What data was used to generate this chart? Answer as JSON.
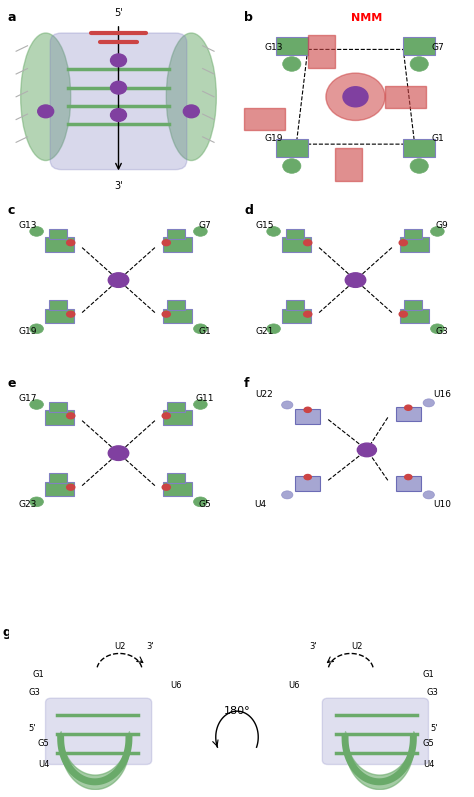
{
  "panels": [
    "a",
    "b",
    "c",
    "d",
    "e",
    "f",
    "g"
  ],
  "panel_bg": "#ffffff",
  "label_color": "#000000",
  "label_fontsize": 9,
  "label_fontweight": "bold",
  "title_color": "#ff0000",
  "panel_b_title": "NMM",
  "panel_c_labels": {
    "top_left": "G13",
    "top_right": "G7",
    "bottom_left": "G19",
    "bottom_right": "G1"
  },
  "panel_d_labels": {
    "top_left": "G15",
    "top_right": "G9",
    "bottom_left": "G21",
    "bottom_right": "G3"
  },
  "panel_e_labels": {
    "top_left": "G17",
    "top_right": "G11",
    "bottom_left": "G23",
    "bottom_right": "G5"
  },
  "panel_f_labels": {
    "top_left": "U22",
    "top_right": "U16",
    "bottom_left": "U4",
    "bottom_right": "U10"
  },
  "panel_a_labels_axis": {
    "top": "5'",
    "bottom": "3'"
  },
  "panel_g_left_labels": {
    "top_left": "U2",
    "top_right": "3'",
    "right_top": "U6",
    "left_top": "G1",
    "left_mid1": "G3",
    "left_bot1": "5'",
    "left_mid2": "G5",
    "left_bot2": "U4"
  },
  "panel_g_right_labels": {
    "top_left": "3'",
    "top_right": "U2",
    "left_top": "U6",
    "right_top": "G1",
    "right_mid1": "G3",
    "right_bot1": "5'",
    "right_mid2": "G5",
    "right_bot2": "U4"
  },
  "panel_g_center": "180°",
  "green_color": "#6aaa6a",
  "blue_color": "#8080c0",
  "purple_color": "#8040a0",
  "red_color": "#cc4444",
  "gray_color": "#b0b0b0",
  "dashed_color": "#000000",
  "figure_width": 4.74,
  "figure_height": 7.97
}
